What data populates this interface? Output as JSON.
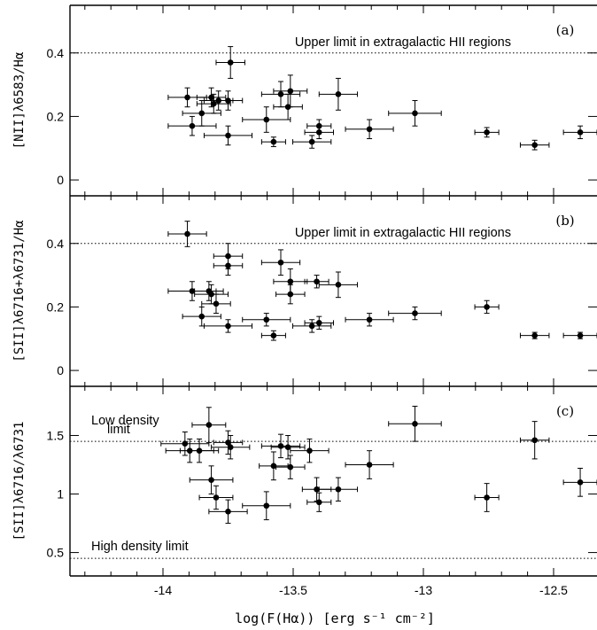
{
  "chart_data": {
    "type": "scatter",
    "xlabel": "log(F(Hα)) [erg s⁻¹ cm⁻²]",
    "xlim": [
      -14.4,
      -12.2
    ],
    "xticks": [
      "-14",
      "-13.5",
      "-13",
      "-12.5"
    ],
    "xtick_values": [
      -14,
      -13.5,
      -13,
      -12.5
    ],
    "panels": [
      {
        "label": "(a)",
        "ylabel": "[NII]λ6583/Hα",
        "ylim": [
          -0.05,
          0.55
        ],
        "yticks": [
          "0",
          "0.2",
          "0.4"
        ],
        "ytick_values": [
          0,
          0.2,
          0.4
        ],
        "reference_lines": [
          {
            "y": 0.4,
            "label": "Upper limit in extragalactic HII regions"
          }
        ],
        "points": [
          {
            "x": -13.91,
            "y": 0.26,
            "xerr": 0.08,
            "yerr": 0.03
          },
          {
            "x": -13.89,
            "y": 0.17,
            "xerr": 0.1,
            "yerr": 0.03
          },
          {
            "x": -13.85,
            "y": 0.21,
            "xerr": 0.08,
            "yerr": 0.04
          },
          {
            "x": -13.81,
            "y": 0.26,
            "xerr": 0.06,
            "yerr": 0.03
          },
          {
            "x": -13.8,
            "y": 0.24,
            "xerr": 0.07,
            "yerr": 0.03
          },
          {
            "x": -13.78,
            "y": 0.25,
            "xerr": 0.06,
            "yerr": 0.03
          },
          {
            "x": -13.74,
            "y": 0.25,
            "xerr": 0.06,
            "yerr": 0.03
          },
          {
            "x": -13.73,
            "y": 0.37,
            "xerr": 0.06,
            "yerr": 0.05
          },
          {
            "x": -13.74,
            "y": 0.14,
            "xerr": 0.1,
            "yerr": 0.03
          },
          {
            "x": -13.58,
            "y": 0.19,
            "xerr": 0.1,
            "yerr": 0.04
          },
          {
            "x": -13.55,
            "y": 0.12,
            "xerr": 0.05,
            "yerr": 0.015
          },
          {
            "x": -13.52,
            "y": 0.27,
            "xerr": 0.08,
            "yerr": 0.04
          },
          {
            "x": -13.48,
            "y": 0.28,
            "xerr": 0.07,
            "yerr": 0.05
          },
          {
            "x": -13.49,
            "y": 0.23,
            "xerr": 0.06,
            "yerr": 0.04
          },
          {
            "x": -13.39,
            "y": 0.12,
            "xerr": 0.08,
            "yerr": 0.02
          },
          {
            "x": -13.36,
            "y": 0.17,
            "xerr": 0.05,
            "yerr": 0.02
          },
          {
            "x": -13.36,
            "y": 0.15,
            "xerr": 0.06,
            "yerr": 0.02
          },
          {
            "x": -13.28,
            "y": 0.27,
            "xerr": 0.08,
            "yerr": 0.05
          },
          {
            "x": -13.15,
            "y": 0.16,
            "xerr": 0.1,
            "yerr": 0.03
          },
          {
            "x": -12.96,
            "y": 0.21,
            "xerr": 0.11,
            "yerr": 0.04
          },
          {
            "x": -12.66,
            "y": 0.15,
            "xerr": 0.05,
            "yerr": 0.015
          },
          {
            "x": -12.46,
            "y": 0.11,
            "xerr": 0.06,
            "yerr": 0.015
          },
          {
            "x": -12.27,
            "y": 0.15,
            "xerr": 0.07,
            "yerr": 0.02
          }
        ]
      },
      {
        "label": "(b)",
        "ylabel": "[SII]λ6716+λ6731/Hα",
        "ylim": [
          -0.05,
          0.55
        ],
        "yticks": [
          "0",
          "0.2",
          "0.4"
        ],
        "ytick_values": [
          0,
          0.2,
          0.4
        ],
        "reference_lines": [
          {
            "y": 0.4,
            "label": "Upper limit in extragalactic HII regions"
          }
        ],
        "points": [
          {
            "x": -13.91,
            "y": 0.43,
            "xerr": 0.08,
            "yerr": 0.04
          },
          {
            "x": -13.89,
            "y": 0.25,
            "xerr": 0.1,
            "yerr": 0.03
          },
          {
            "x": -13.85,
            "y": 0.17,
            "xerr": 0.08,
            "yerr": 0.03
          },
          {
            "x": -13.82,
            "y": 0.25,
            "xerr": 0.06,
            "yerr": 0.03
          },
          {
            "x": -13.81,
            "y": 0.24,
            "xerr": 0.07,
            "yerr": 0.03
          },
          {
            "x": -13.79,
            "y": 0.21,
            "xerr": 0.06,
            "yerr": 0.03
          },
          {
            "x": -13.74,
            "y": 0.36,
            "xerr": 0.06,
            "yerr": 0.04
          },
          {
            "x": -13.74,
            "y": 0.33,
            "xerr": 0.06,
            "yerr": 0.03
          },
          {
            "x": -13.74,
            "y": 0.14,
            "xerr": 0.1,
            "yerr": 0.02
          },
          {
            "x": -13.58,
            "y": 0.16,
            "xerr": 0.1,
            "yerr": 0.02
          },
          {
            "x": -13.55,
            "y": 0.11,
            "xerr": 0.05,
            "yerr": 0.015
          },
          {
            "x": -13.52,
            "y": 0.34,
            "xerr": 0.08,
            "yerr": 0.04
          },
          {
            "x": -13.48,
            "y": 0.28,
            "xerr": 0.07,
            "yerr": 0.04
          },
          {
            "x": -13.48,
            "y": 0.24,
            "xerr": 0.06,
            "yerr": 0.03
          },
          {
            "x": -13.39,
            "y": 0.14,
            "xerr": 0.08,
            "yerr": 0.02
          },
          {
            "x": -13.37,
            "y": 0.28,
            "xerr": 0.05,
            "yerr": 0.02
          },
          {
            "x": -13.36,
            "y": 0.15,
            "xerr": 0.06,
            "yerr": 0.02
          },
          {
            "x": -13.28,
            "y": 0.27,
            "xerr": 0.08,
            "yerr": 0.04
          },
          {
            "x": -13.15,
            "y": 0.16,
            "xerr": 0.1,
            "yerr": 0.02
          },
          {
            "x": -12.96,
            "y": 0.18,
            "xerr": 0.11,
            "yerr": 0.02
          },
          {
            "x": -12.66,
            "y": 0.2,
            "xerr": 0.05,
            "yerr": 0.02
          },
          {
            "x": -12.46,
            "y": 0.11,
            "xerr": 0.06,
            "yerr": 0.01
          },
          {
            "x": -12.27,
            "y": 0.11,
            "xerr": 0.07,
            "yerr": 0.01
          }
        ]
      },
      {
        "label": "(c)",
        "ylabel": "[SII]λ6716/λ6731",
        "ylim": [
          0.3,
          1.92
        ],
        "yticks": [
          "0.5",
          "1",
          "1.5"
        ],
        "ytick_values": [
          0.5,
          1.0,
          1.5
        ],
        "reference_lines": [
          {
            "y": 1.45,
            "label": "Low density\nlimit"
          },
          {
            "y": 0.45,
            "label": "High density limit"
          }
        ],
        "points": [
          {
            "x": -13.92,
            "y": 1.43,
            "xerr": 0.1,
            "yerr": 0.1
          },
          {
            "x": -13.9,
            "y": 1.37,
            "xerr": 0.1,
            "yerr": 0.1
          },
          {
            "x": -13.86,
            "y": 1.37,
            "xerr": 0.08,
            "yerr": 0.1
          },
          {
            "x": -13.82,
            "y": 1.59,
            "xerr": 0.07,
            "yerr": 0.15
          },
          {
            "x": -13.81,
            "y": 1.12,
            "xerr": 0.09,
            "yerr": 0.12
          },
          {
            "x": -13.79,
            "y": 0.97,
            "xerr": 0.07,
            "yerr": 0.1
          },
          {
            "x": -13.74,
            "y": 1.44,
            "xerr": 0.06,
            "yerr": 0.1
          },
          {
            "x": -13.73,
            "y": 1.4,
            "xerr": 0.08,
            "yerr": 0.1
          },
          {
            "x": -13.74,
            "y": 0.85,
            "xerr": 0.08,
            "yerr": 0.1
          },
          {
            "x": -13.58,
            "y": 0.9,
            "xerr": 0.1,
            "yerr": 0.12
          },
          {
            "x": -13.55,
            "y": 1.24,
            "xerr": 0.06,
            "yerr": 0.12
          },
          {
            "x": -13.52,
            "y": 1.41,
            "xerr": 0.08,
            "yerr": 0.1
          },
          {
            "x": -13.49,
            "y": 1.4,
            "xerr": 0.07,
            "yerr": 0.1
          },
          {
            "x": -13.48,
            "y": 1.23,
            "xerr": 0.06,
            "yerr": 0.1
          },
          {
            "x": -13.4,
            "y": 1.37,
            "xerr": 0.08,
            "yerr": 0.1
          },
          {
            "x": -13.37,
            "y": 1.04,
            "xerr": 0.06,
            "yerr": 0.1
          },
          {
            "x": -13.36,
            "y": 0.93,
            "xerr": 0.05,
            "yerr": 0.08
          },
          {
            "x": -13.28,
            "y": 1.04,
            "xerr": 0.08,
            "yerr": 0.1
          },
          {
            "x": -13.15,
            "y": 1.25,
            "xerr": 0.1,
            "yerr": 0.12
          },
          {
            "x": -12.96,
            "y": 1.6,
            "xerr": 0.11,
            "yerr": 0.15
          },
          {
            "x": -12.66,
            "y": 0.97,
            "xerr": 0.05,
            "yerr": 0.12
          },
          {
            "x": -12.46,
            "y": 1.46,
            "xerr": 0.06,
            "yerr": 0.16
          },
          {
            "x": -12.27,
            "y": 1.1,
            "xerr": 0.07,
            "yerr": 0.12
          }
        ]
      }
    ]
  }
}
